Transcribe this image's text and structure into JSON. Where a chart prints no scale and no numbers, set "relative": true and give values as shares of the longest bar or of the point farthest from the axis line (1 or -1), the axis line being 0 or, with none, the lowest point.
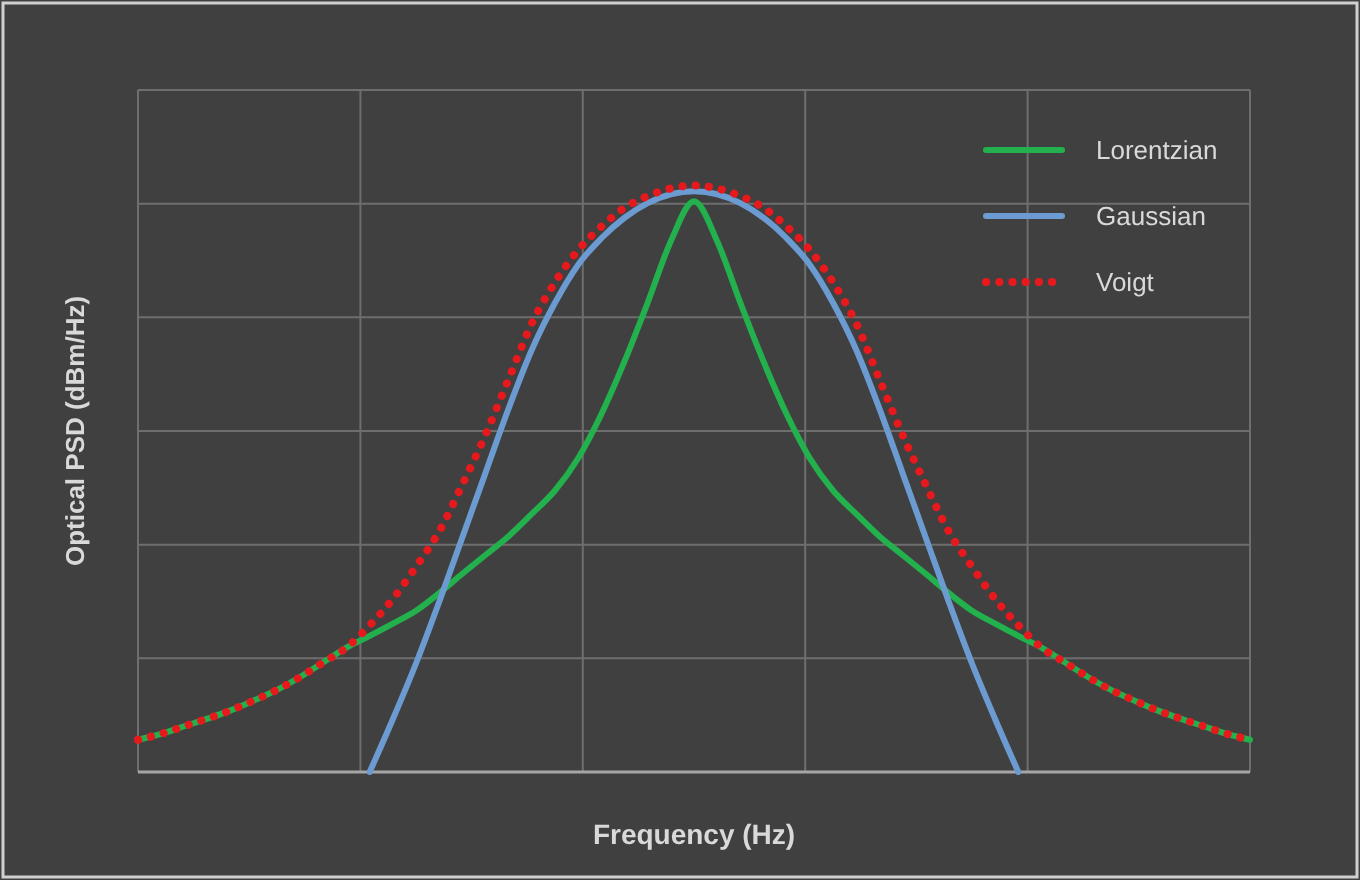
{
  "chart_data": {
    "type": "line",
    "relative": true,
    "xlabel": "Frequency (Hz)",
    "ylabel": "Optical PSD (dBm/Hz)",
    "grid": true,
    "legend": "top right",
    "categories": [
      null,
      null,
      null,
      null,
      null,
      null,
      null,
      null,
      null,
      null,
      null,
      null,
      null,
      null,
      null,
      null,
      null,
      null,
      null,
      null,
      null,
      null,
      null,
      null,
      null,
      null,
      null,
      null,
      null,
      null,
      null,
      null,
      null,
      null,
      null,
      null,
      null,
      null,
      null,
      null,
      null,
      null,
      null,
      null,
      null,
      null,
      null,
      null,
      null
    ],
    "series": [
      {
        "name": "Lorentzian",
        "color": "#22b14c",
        "line_style": "solid",
        "values": [
          0.055,
          0.065,
          0.078,
          0.091,
          0.105,
          0.122,
          0.14,
          0.162,
          0.187,
          0.212,
          0.232,
          0.253,
          0.275,
          0.305,
          0.338,
          0.37,
          0.402,
          0.44,
          0.48,
          0.535,
          0.61,
          0.7,
          0.8,
          0.905,
          0.973,
          0.905,
          0.8,
          0.7,
          0.61,
          0.535,
          0.48,
          0.44,
          0.402,
          0.37,
          0.338,
          0.305,
          0.275,
          0.253,
          0.232,
          0.212,
          0.187,
          0.162,
          0.14,
          0.122,
          0.105,
          0.091,
          0.078,
          0.065,
          0.055
        ]
      },
      {
        "name": "Gaussian",
        "color": "#6c9bd2",
        "line_style": "solid",
        "values": [
          null,
          null,
          null,
          null,
          null,
          null,
          null,
          null,
          null,
          null,
          0,
          0.09,
          0.185,
          0.29,
          0.4,
          0.51,
          0.62,
          0.72,
          0.8,
          0.865,
          0.91,
          0.945,
          0.97,
          0.985,
          0.99,
          0.985,
          0.97,
          0.945,
          0.91,
          0.865,
          0.8,
          0.72,
          0.62,
          0.51,
          0.4,
          0.29,
          0.185,
          0.09,
          0,
          null,
          null,
          null,
          null,
          null,
          null,
          null,
          null,
          null,
          null
        ]
      },
      {
        "name": "Voigt",
        "color": "#e8191c",
        "line_style": "dotted",
        "values": [
          0.055,
          0.065,
          0.078,
          0.091,
          0.105,
          0.122,
          0.14,
          0.162,
          0.187,
          0.212,
          0.25,
          0.295,
          0.35,
          0.41,
          0.49,
          0.575,
          0.67,
          0.765,
          0.835,
          0.89,
          0.93,
          0.962,
          0.982,
          0.995,
          1.0,
          0.995,
          0.982,
          0.962,
          0.93,
          0.89,
          0.835,
          0.765,
          0.67,
          0.575,
          0.49,
          0.41,
          0.35,
          0.295,
          0.25,
          0.212,
          0.187,
          0.162,
          0.14,
          0.122,
          0.105,
          0.091,
          0.078,
          0.065,
          0.055
        ]
      }
    ]
  }
}
